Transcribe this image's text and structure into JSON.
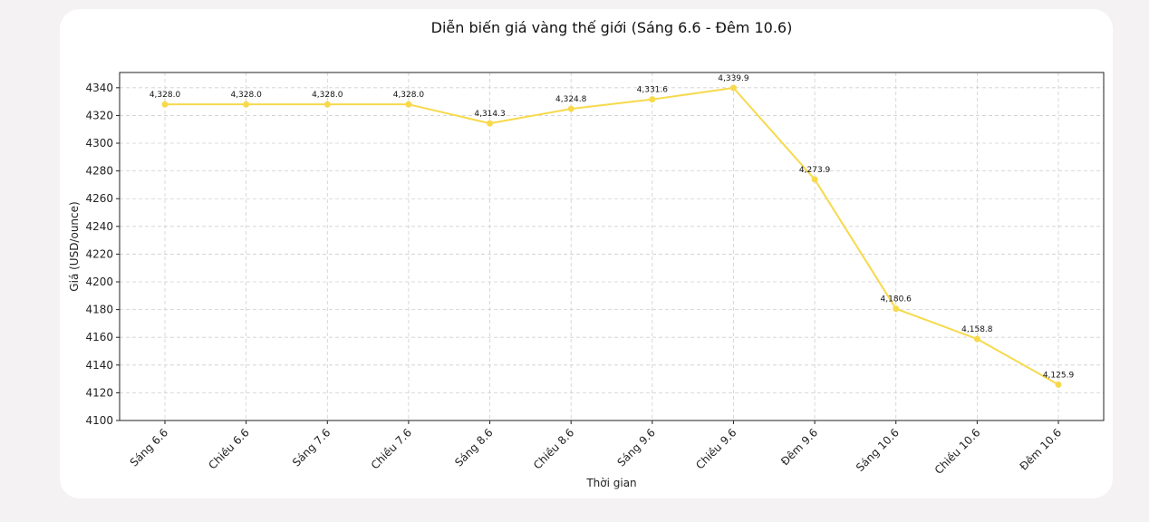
{
  "colors": {
    "background": "#f4f2f2",
    "card": "#ffffff",
    "series": "#f7d94c"
  },
  "chart_data": {
    "type": "line",
    "title": "Diễn biến giá vàng thế giới (Sáng 6.6 - Đêm 10.6)",
    "xlabel": "Thời gian",
    "ylabel": "Giá (USD/ounce)",
    "categories": [
      "Sáng 6.6",
      "Chiều 6.6",
      "Sáng 7.6",
      "Chiều 7.6",
      "Sáng 8.6",
      "Chiều 8.6",
      "Sáng 9.6",
      "Chiều 9.6",
      "Đêm 9.6",
      "Sáng 10.6",
      "Chiều 10.6",
      "Đêm 10.6"
    ],
    "values": [
      4328.0,
      4328.0,
      4328.0,
      4328.0,
      4314.3,
      4324.8,
      4331.6,
      4339.9,
      4273.9,
      4180.6,
      4158.8,
      4125.9
    ],
    "data_labels": [
      "4,328.0",
      "4,328.0",
      "4,328.0",
      "4,328.0",
      "4,314.3",
      "4,324.8",
      "4,331.6",
      "4,339.9",
      "4,273.9",
      "4,180.6",
      "4,158.8",
      "4,125.9"
    ],
    "ylim": [
      4100,
      4351
    ],
    "yticks": [
      4100,
      4120,
      4140,
      4160,
      4180,
      4200,
      4220,
      4240,
      4260,
      4280,
      4300,
      4320,
      4340
    ],
    "grid": true,
    "markers": true
  }
}
